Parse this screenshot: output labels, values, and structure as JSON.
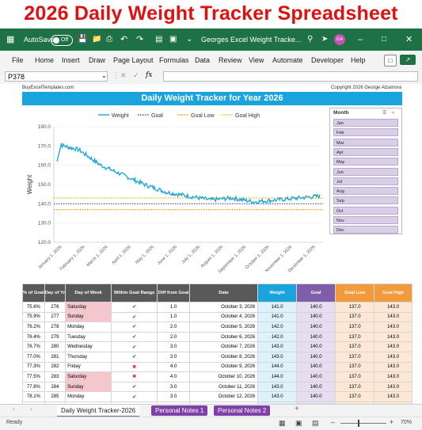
{
  "banner": "2026 Daily Weight Tracker Spreadsheet",
  "titlebar": {
    "autosave": "AutoSave",
    "toggle": "Off",
    "title": "Georges Excel Weight Tracke...",
    "avatar": "GA"
  },
  "ribbon": {
    "menu": [
      "File",
      "Home",
      "Insert",
      "Draw",
      "Page Layout",
      "Formulas",
      "Data",
      "Review",
      "View",
      "Automate",
      "Developer",
      "Help"
    ]
  },
  "formula": {
    "namebox": "P378",
    "fx": "fx"
  },
  "sheet": {
    "site": "BuyExcelTemplates.com",
    "copyright": "Copyright 2026  George Alzamora"
  },
  "chart_data": {
    "type": "line",
    "title": "Daily Weight Tracker for Year 2026",
    "ylabel": "Weight",
    "ylim": [
      120,
      180
    ],
    "yticks": [
      "180.0",
      "170.0",
      "160.0",
      "150.0",
      "140.0",
      "130.0",
      "120.0"
    ],
    "xticks": [
      "January 1, 2026",
      "February 1, 2026",
      "March 1, 2026",
      "April 1, 2026",
      "May 1, 2026",
      "June 1, 2026",
      "July 1, 2026",
      "August 1, 2026",
      "September 1, 2026",
      "October 1, 2026",
      "November 1, 2026",
      "December 1, 2026"
    ],
    "legend": [
      "Weight",
      "Goal",
      "Goal Low",
      "Goal High"
    ],
    "legend_position": "top",
    "goal": 140,
    "goal_low": 137,
    "goal_high": 143,
    "weight_monthly": [
      171,
      168,
      160,
      155,
      150,
      146,
      144,
      142,
      143,
      141,
      142,
      143,
      144
    ],
    "colors": {
      "weight": "#1aa3dc",
      "goal": "#5b4b9a",
      "goal_low": "#f0a000",
      "goal_high": "#f0c000"
    }
  },
  "slicer": {
    "title": "Month",
    "items": [
      "Jan",
      "Feb",
      "Mar",
      "Apr",
      "May",
      "Jun",
      "Jul",
      "Aug",
      "Sep",
      "Oct",
      "Nov",
      "Dec"
    ]
  },
  "table": {
    "headers": [
      "% of Goal",
      "Day of Yr",
      "Day of Week",
      "Within Goal Range",
      "Diff from Goal",
      "Date",
      "Weight",
      "Goal",
      "Goal Low",
      "Goal High"
    ],
    "rows": [
      {
        "pct": "75.6%",
        "day": "276",
        "dow": "Saturday",
        "within": "ok",
        "diff": "1.0",
        "date": "October 3, 2026",
        "w": "141.0",
        "g": "140.0",
        "lo": "137.0",
        "hi": "143.0",
        "wk": true
      },
      {
        "pct": "75.9%",
        "day": "277",
        "dow": "Sunday",
        "within": "ok",
        "diff": "1.0",
        "date": "October 4, 2026",
        "w": "141.0",
        "g": "140.0",
        "lo": "137.0",
        "hi": "143.0",
        "wk": true
      },
      {
        "pct": "76.2%",
        "day": "278",
        "dow": "Monday",
        "within": "ok",
        "diff": "2.0",
        "date": "October 5, 2026",
        "w": "142.0",
        "g": "140.0",
        "lo": "137.0",
        "hi": "143.0",
        "wk": false
      },
      {
        "pct": "76.4%",
        "day": "279",
        "dow": "Tuesday",
        "within": "ok",
        "diff": "2.0",
        "date": "October 6, 2026",
        "w": "142.0",
        "g": "140.0",
        "lo": "137.0",
        "hi": "143.0",
        "wk": false
      },
      {
        "pct": "76.7%",
        "day": "280",
        "dow": "Wednesday",
        "within": "ok",
        "diff": "3.0",
        "date": "October 7, 2026",
        "w": "143.0",
        "g": "140.0",
        "lo": "137.0",
        "hi": "143.0",
        "wk": false
      },
      {
        "pct": "77.0%",
        "day": "281",
        "dow": "Thursday",
        "within": "ok",
        "diff": "3.0",
        "date": "October 8, 2026",
        "w": "143.0",
        "g": "140.0",
        "lo": "137.0",
        "hi": "143.0",
        "wk": false
      },
      {
        "pct": "77.3%",
        "day": "282",
        "dow": "Friday",
        "within": "bad",
        "diff": "4.0",
        "date": "October 9, 2026",
        "w": "144.0",
        "g": "140.0",
        "lo": "137.0",
        "hi": "143.0",
        "wk": false
      },
      {
        "pct": "77.5%",
        "day": "283",
        "dow": "Saturday",
        "within": "bad",
        "diff": "4.0",
        "date": "October 10, 2026",
        "w": "144.0",
        "g": "140.0",
        "lo": "137.0",
        "hi": "143.0",
        "wk": true
      },
      {
        "pct": "77.8%",
        "day": "284",
        "dow": "Sunday",
        "within": "ok",
        "diff": "3.0",
        "date": "October 11, 2026",
        "w": "143.0",
        "g": "140.0",
        "lo": "137.0",
        "hi": "143.0",
        "wk": true
      },
      {
        "pct": "78.1%",
        "day": "285",
        "dow": "Monday",
        "within": "ok",
        "diff": "3.0",
        "date": "October 12, 2026",
        "w": "143.0",
        "g": "140.0",
        "lo": "137.0",
        "hi": "143.0",
        "wk": false
      },
      {
        "pct": "78.4%",
        "day": "286",
        "dow": "Tuesday",
        "within": "ok",
        "diff": "3.0",
        "date": "October 13, 2026",
        "w": "143.0",
        "g": "140.0",
        "lo": "137.0",
        "hi": "143.0",
        "wk": false
      }
    ]
  },
  "tabs": [
    "Daily Weight Tracker-2026",
    "Personal Notes 1",
    "Personal Notes 2"
  ],
  "status": {
    "ready": "Ready",
    "zoom": "70%"
  }
}
